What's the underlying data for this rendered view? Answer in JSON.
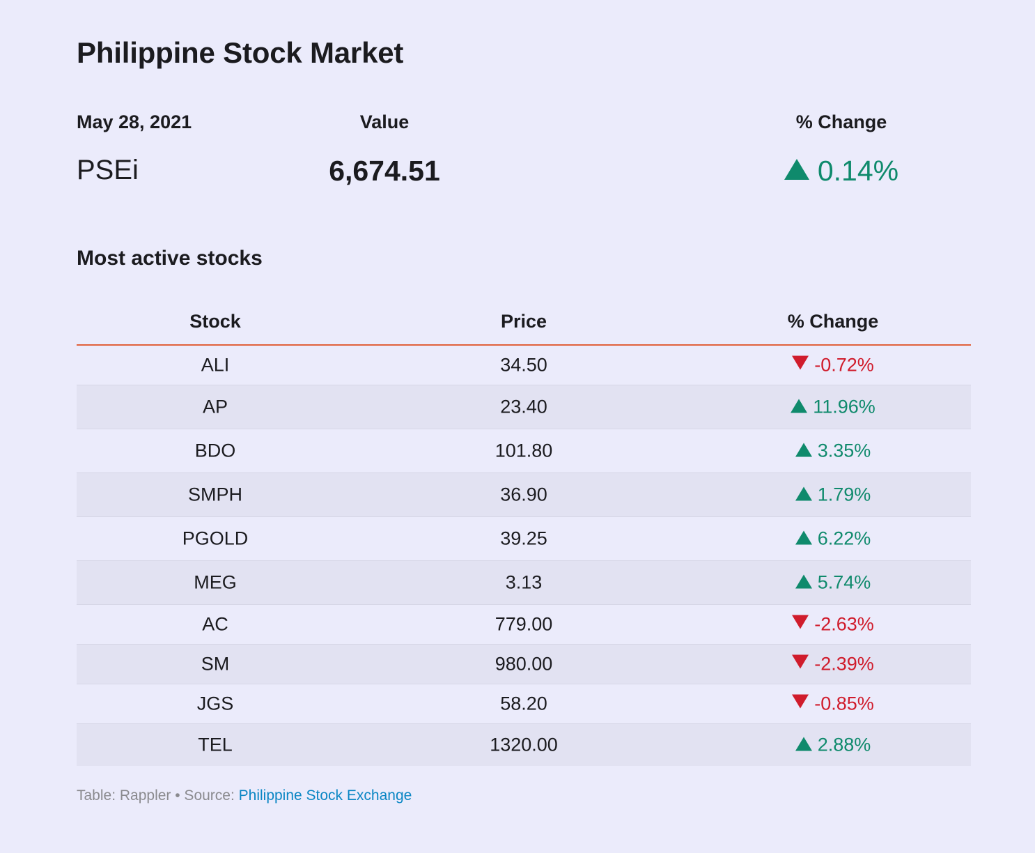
{
  "title": "Philippine Stock Market",
  "summary": {
    "date_header": "May 28, 2021",
    "value_header": "Value",
    "change_header": "% Change",
    "index_name": "PSEi",
    "index_value": "6,674.51",
    "index_change": "0.14%",
    "index_direction": "up"
  },
  "section_title": "Most active stocks",
  "table": {
    "headers": [
      "Stock",
      "Price",
      "% Change"
    ],
    "rows": [
      {
        "stock": "ALI",
        "price": "34.50",
        "change": "-0.72%",
        "direction": "down"
      },
      {
        "stock": "AP",
        "price": "23.40",
        "change": "11.96%",
        "direction": "up"
      },
      {
        "stock": "BDO",
        "price": "101.80",
        "change": "3.35%",
        "direction": "up"
      },
      {
        "stock": "SMPH",
        "price": "36.90",
        "change": "1.79%",
        "direction": "up"
      },
      {
        "stock": "PGOLD",
        "price": "39.25",
        "change": "6.22%",
        "direction": "up"
      },
      {
        "stock": "MEG",
        "price": "3.13",
        "change": "5.74%",
        "direction": "up"
      },
      {
        "stock": "AC",
        "price": "779.00",
        "change": "-2.63%",
        "direction": "down"
      },
      {
        "stock": "SM",
        "price": "980.00",
        "change": "-2.39%",
        "direction": "down"
      },
      {
        "stock": "JGS",
        "price": "58.20",
        "change": "-0.85%",
        "direction": "down"
      },
      {
        "stock": "TEL",
        "price": "1320.00",
        "change": "2.88%",
        "direction": "up"
      }
    ]
  },
  "footer": {
    "prefix": "Table: Rappler • Source: ",
    "source_link": "Philippine Stock Exchange"
  },
  "colors": {
    "background": "#ebebfb",
    "up": "#0f8a6c",
    "down": "#d01c2c",
    "header_rule": "#e0603a",
    "link": "#0a86c4"
  }
}
